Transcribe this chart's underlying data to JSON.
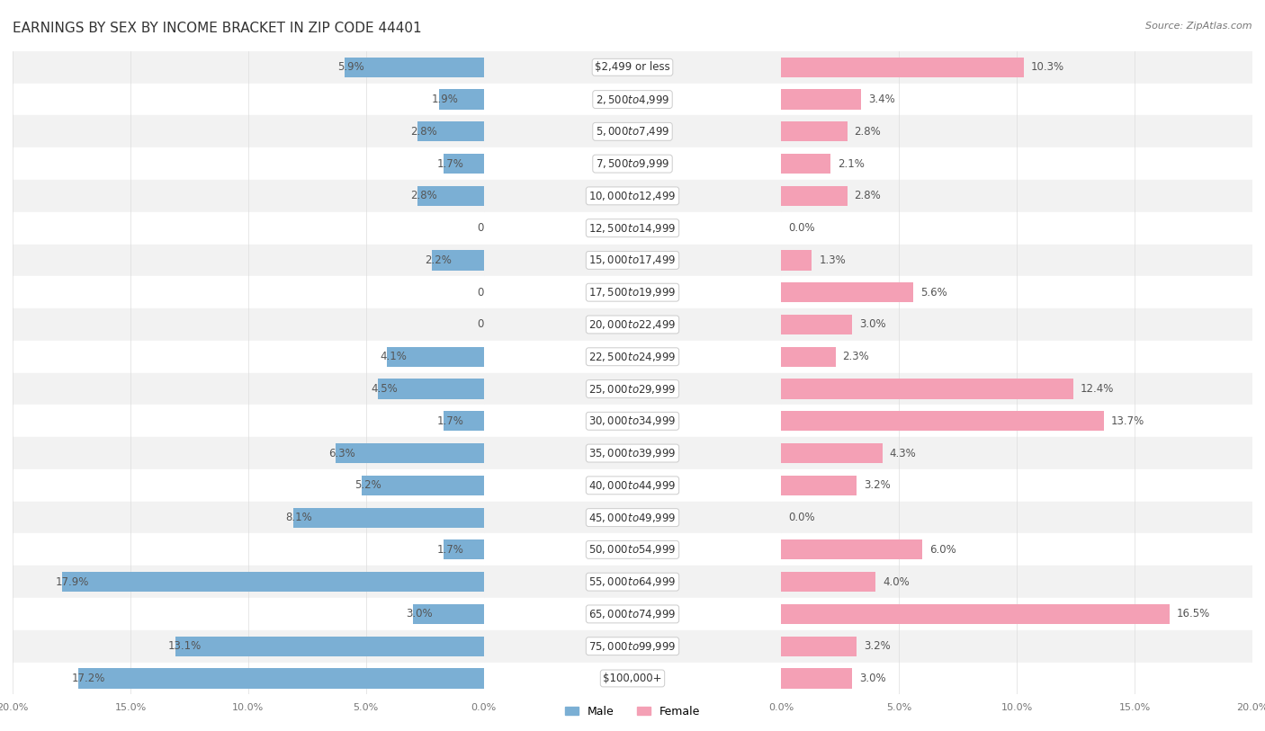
{
  "title": "EARNINGS BY SEX BY INCOME BRACKET IN ZIP CODE 44401",
  "source": "Source: ZipAtlas.com",
  "categories": [
    "$2,499 or less",
    "$2,500 to $4,999",
    "$5,000 to $7,499",
    "$7,500 to $9,999",
    "$10,000 to $12,499",
    "$12,500 to $14,999",
    "$15,000 to $17,499",
    "$17,500 to $19,999",
    "$20,000 to $22,499",
    "$22,500 to $24,999",
    "$25,000 to $29,999",
    "$30,000 to $34,999",
    "$35,000 to $39,999",
    "$40,000 to $44,999",
    "$45,000 to $49,999",
    "$50,000 to $54,999",
    "$55,000 to $64,999",
    "$65,000 to $74,999",
    "$75,000 to $99,999",
    "$100,000+"
  ],
  "male": [
    5.9,
    1.9,
    2.8,
    1.7,
    2.8,
    0.0,
    2.2,
    0.0,
    0.0,
    4.1,
    4.5,
    1.7,
    6.3,
    5.2,
    8.1,
    1.7,
    17.9,
    3.0,
    13.1,
    17.2
  ],
  "female": [
    10.3,
    3.4,
    2.8,
    2.1,
    2.8,
    0.0,
    1.3,
    5.6,
    3.0,
    2.3,
    12.4,
    13.7,
    4.3,
    3.2,
    0.0,
    6.0,
    4.0,
    16.5,
    3.2,
    3.0
  ],
  "male_color": "#7bafd4",
  "female_color": "#f4a0b5",
  "label_color": "#555555",
  "cat_color": "#333333",
  "bg_color": "#ffffff",
  "row_even_color": "#f2f2f2",
  "row_odd_color": "#ffffff",
  "xlim": 20.0,
  "bar_height": 0.62,
  "label_fontsize": 8.5,
  "category_fontsize": 8.5,
  "title_fontsize": 11,
  "source_fontsize": 8
}
